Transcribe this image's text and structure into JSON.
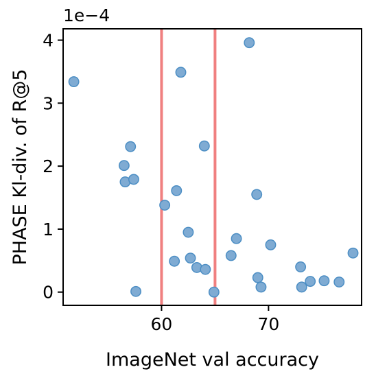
{
  "chart_data": {
    "type": "scatter",
    "xlabel": "ImageNet val accuracy",
    "ylabel": "PHASE Kl-div. of R@5",
    "y_offset_label": "1e−4",
    "y_scale": 0.0001,
    "xlim": [
      50.8,
      78.7
    ],
    "ylim": [
      -0.21,
      4.18
    ],
    "x_ticks": [
      60,
      70
    ],
    "x_tick_labels": [
      "60",
      "70"
    ],
    "y_ticks": [
      0,
      1,
      2,
      3,
      4
    ],
    "y_tick_labels": [
      "0",
      "1",
      "2",
      "3",
      "4"
    ],
    "grid": false,
    "vertical_lines": [
      60,
      65
    ],
    "colors": {
      "point_fill": "#7fabd3",
      "point_edge": "#4c8ec4",
      "vline": "#f08080",
      "axes": "#000000"
    },
    "points": [
      {
        "x": 51.8,
        "y": 3.34
      },
      {
        "x": 56.5,
        "y": 2.01
      },
      {
        "x": 56.6,
        "y": 1.75
      },
      {
        "x": 57.1,
        "y": 2.31
      },
      {
        "x": 57.4,
        "y": 1.79
      },
      {
        "x": 57.6,
        "y": 0.01
      },
      {
        "x": 60.3,
        "y": 1.38
      },
      {
        "x": 61.2,
        "y": 0.49
      },
      {
        "x": 61.4,
        "y": 1.61
      },
      {
        "x": 61.8,
        "y": 3.49
      },
      {
        "x": 62.5,
        "y": 0.95
      },
      {
        "x": 62.7,
        "y": 0.54
      },
      {
        "x": 63.3,
        "y": 0.39
      },
      {
        "x": 64.0,
        "y": 2.32
      },
      {
        "x": 64.1,
        "y": 0.36
      },
      {
        "x": 64.9,
        "y": 0.0
      },
      {
        "x": 66.5,
        "y": 0.58
      },
      {
        "x": 67.0,
        "y": 0.85
      },
      {
        "x": 68.2,
        "y": 3.96
      },
      {
        "x": 68.9,
        "y": 1.55
      },
      {
        "x": 69.0,
        "y": 0.23
      },
      {
        "x": 69.3,
        "y": 0.08
      },
      {
        "x": 70.2,
        "y": 0.75
      },
      {
        "x": 73.0,
        "y": 0.4
      },
      {
        "x": 73.1,
        "y": 0.08
      },
      {
        "x": 73.9,
        "y": 0.17
      },
      {
        "x": 75.2,
        "y": 0.18
      },
      {
        "x": 76.6,
        "y": 0.16
      },
      {
        "x": 77.9,
        "y": 0.62
      }
    ]
  }
}
